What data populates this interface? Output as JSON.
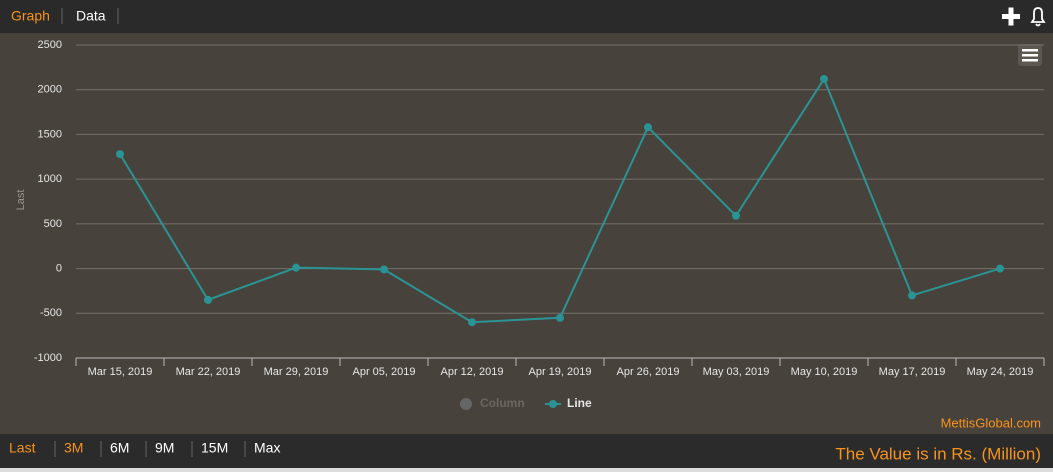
{
  "tabs": [
    "Graph",
    "Data"
  ],
  "active_tab": 0,
  "chart_data": {
    "type": "line",
    "categories": [
      "Mar 15, 2019",
      "Mar 22, 2019",
      "Mar 29, 2019",
      "Apr 05, 2019",
      "Apr 12, 2019",
      "Apr 19, 2019",
      "Apr 26, 2019",
      "May 03, 2019",
      "May 10, 2019",
      "May 17, 2019",
      "May 24, 2019"
    ],
    "series": [
      {
        "name": "Column",
        "color": "#555555",
        "hidden": true,
        "values": [
          null,
          null,
          null,
          null,
          null,
          null,
          null,
          null,
          null,
          null,
          null
        ]
      },
      {
        "name": "Line",
        "color": "#2a9494",
        "values": [
          1280,
          -350,
          10,
          -10,
          -600,
          -550,
          1580,
          590,
          2120,
          -300,
          0
        ]
      }
    ],
    "ylabel": "Last",
    "ylim": [
      -1000,
      2500
    ],
    "yticks": [
      -1000,
      -500,
      0,
      500,
      1000,
      1500,
      2000,
      2500
    ],
    "grid": true,
    "credit": "MettisGlobal.com"
  },
  "ranges": {
    "label": "Last",
    "options": [
      "3M",
      "6M",
      "9M",
      "15M",
      "Max"
    ],
    "active": 0
  },
  "note": "The Value is in Rs. (Million)"
}
